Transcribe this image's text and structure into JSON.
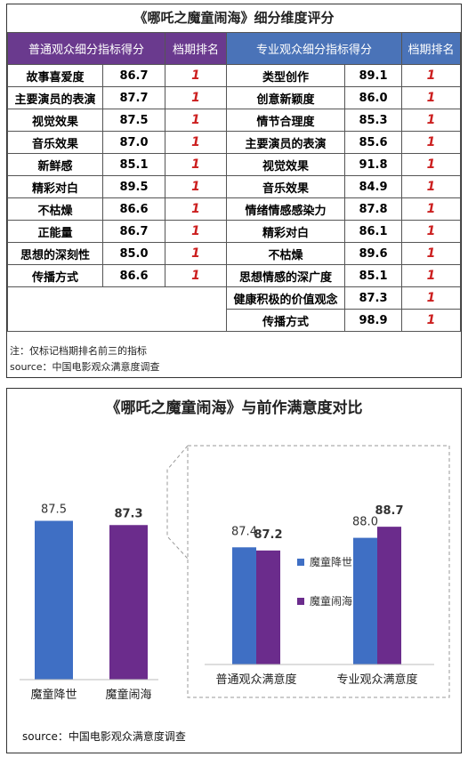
{
  "top": {
    "title": "《哪吒之魔童闹海》细分维度评分",
    "headers": {
      "general": "普通观众细分指标得分",
      "rank1": "档期排名",
      "professional": "专业观众细分指标得分",
      "rank2": "档期排名"
    },
    "general_rows": [
      {
        "label": "故事喜爱度",
        "score": "86.7",
        "rank": "1"
      },
      {
        "label": "主要演员的表演",
        "score": "87.7",
        "rank": "1"
      },
      {
        "label": "视觉效果",
        "score": "87.5",
        "rank": "1"
      },
      {
        "label": "音乐效果",
        "score": "87.0",
        "rank": "1"
      },
      {
        "label": "新鲜感",
        "score": "85.1",
        "rank": "1"
      },
      {
        "label": "精彩对白",
        "score": "89.5",
        "rank": "1"
      },
      {
        "label": "不枯燥",
        "score": "86.6",
        "rank": "1"
      },
      {
        "label": "正能量",
        "score": "86.7",
        "rank": "1"
      },
      {
        "label": "思想的深刻性",
        "score": "85.0",
        "rank": "1"
      },
      {
        "label": "传播方式",
        "score": "86.6",
        "rank": "1"
      }
    ],
    "professional_rows": [
      {
        "label": "类型创作",
        "score": "89.1",
        "rank": "1"
      },
      {
        "label": "创意新颖度",
        "score": "86.0",
        "rank": "1"
      },
      {
        "label": "情节合理度",
        "score": "85.3",
        "rank": "1"
      },
      {
        "label": "主要演员的表演",
        "score": "85.6",
        "rank": "1"
      },
      {
        "label": "视觉效果",
        "score": "91.8",
        "rank": "1"
      },
      {
        "label": "音乐效果",
        "score": "84.9",
        "rank": "1"
      },
      {
        "label": "情绪情感感染力",
        "score": "87.8",
        "rank": "1"
      },
      {
        "label": "精彩对白",
        "score": "86.1",
        "rank": "1"
      },
      {
        "label": "不枯燥",
        "score": "89.6",
        "rank": "1"
      },
      {
        "label": "思想情感的深广度",
        "score": "85.1",
        "rank": "1"
      },
      {
        "label": "健康积极的价值观念",
        "score": "87.3",
        "rank": "1"
      },
      {
        "label": "传播方式",
        "score": "98.9",
        "rank": "1"
      }
    ],
    "note": "注：仅标记档期排名前三的指标",
    "source": "source：中国电影观众满意度调查"
  },
  "bottom": {
    "title": "《哪吒之魔童闹海》与前作满意度对比",
    "source": "source：中国电影观众满意度调查",
    "colors": {
      "movie1": "#3f6fc4",
      "movie2": "#6b2c8c"
    }
  },
  "chart_data": [
    {
      "type": "bar",
      "categories": [
        "魔童降世",
        "魔童闹海"
      ],
      "values": [
        87.5,
        87.3
      ],
      "data_labels": [
        "87.5",
        "87.3"
      ],
      "ylim": [
        80,
        90
      ]
    },
    {
      "type": "bar",
      "categories": [
        "普通观众满意度",
        "专业观众满意度"
      ],
      "series": [
        {
          "name": "魔童降世",
          "values": [
            87.4,
            88.0
          ],
          "labels": [
            "87.4",
            "88.0"
          ]
        },
        {
          "name": "魔童闹海",
          "values": [
            87.2,
            88.7
          ],
          "labels": [
            "87.2",
            "88.7"
          ]
        }
      ],
      "legend": "left",
      "ylim": [
        80,
        90
      ]
    }
  ]
}
